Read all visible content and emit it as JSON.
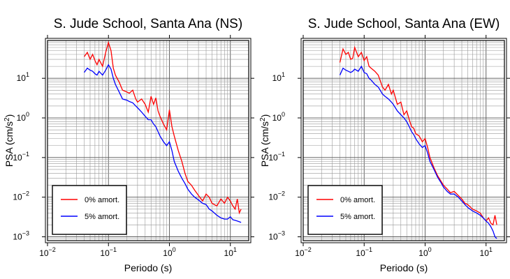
{
  "chart_data": [
    {
      "type": "line",
      "title": "S. Jude School, Santa Ana (NS)",
      "xlabel": "Periodo (s)",
      "ylabel": "PSA (cm/s²)",
      "xscale": "log",
      "yscale": "log",
      "xlim": [
        0.01,
        20
      ],
      "ylim": [
        0.0008,
        90
      ],
      "x_ticks": [
        {
          "value": 0.01,
          "label_base": "10",
          "label_exp": "−2"
        },
        {
          "value": 0.1,
          "label_base": "10",
          "label_exp": "−1"
        },
        {
          "value": 1,
          "label_base": "10",
          "label_exp": "0"
        },
        {
          "value": 10,
          "label_base": "10",
          "label_exp": "1"
        }
      ],
      "y_ticks": [
        {
          "value": 0.001,
          "label_base": "10",
          "label_exp": "−3"
        },
        {
          "value": 0.01,
          "label_base": "10",
          "label_exp": "−2"
        },
        {
          "value": 0.1,
          "label_base": "10",
          "label_exp": "−1"
        },
        {
          "value": 1,
          "label_base": "10",
          "label_exp": "0"
        },
        {
          "value": 10,
          "label_base": "10",
          "label_exp": "1"
        }
      ],
      "grid": true,
      "legend_position": "bottom-left",
      "series": [
        {
          "name": "0% amort.",
          "color": "#ff0000",
          "x": [
            0.04,
            0.045,
            0.05,
            0.055,
            0.06,
            0.065,
            0.07,
            0.08,
            0.09,
            0.1,
            0.11,
            0.12,
            0.13,
            0.15,
            0.17,
            0.2,
            0.22,
            0.25,
            0.28,
            0.3,
            0.35,
            0.4,
            0.45,
            0.5,
            0.55,
            0.6,
            0.65,
            0.7,
            0.8,
            0.9,
            1.0,
            1.1,
            1.2,
            1.4,
            1.6,
            1.8,
            2.0,
            2.3,
            2.6,
            3.0,
            3.5,
            4.0,
            4.5,
            5.0,
            6.0,
            7.0,
            8.0,
            9.0,
            10.0,
            11.0,
            12.0,
            13.0,
            14.0,
            15.0
          ],
          "y": [
            35,
            45,
            30,
            40,
            28,
            22,
            30,
            20,
            45,
            80,
            50,
            18,
            12,
            8,
            5,
            4.5,
            4.2,
            5,
            3,
            2.5,
            3,
            2.2,
            1.4,
            3.5,
            2.2,
            3.2,
            1.5,
            1.1,
            0.7,
            0.5,
            1.6,
            0.6,
            0.35,
            0.15,
            0.08,
            0.04,
            0.025,
            0.02,
            0.015,
            0.011,
            0.008,
            0.012,
            0.01,
            0.007,
            0.006,
            0.009,
            0.007,
            0.01,
            0.008,
            0.006,
            0.005,
            0.009,
            0.004,
            0.005
          ]
        },
        {
          "name": "5% amort.",
          "color": "#0000ff",
          "x": [
            0.04,
            0.045,
            0.05,
            0.055,
            0.06,
            0.065,
            0.07,
            0.08,
            0.09,
            0.1,
            0.11,
            0.12,
            0.13,
            0.15,
            0.17,
            0.2,
            0.22,
            0.25,
            0.28,
            0.3,
            0.35,
            0.4,
            0.45,
            0.5,
            0.55,
            0.6,
            0.65,
            0.7,
            0.8,
            0.9,
            1.0,
            1.1,
            1.2,
            1.4,
            1.6,
            1.8,
            2.0,
            2.3,
            2.6,
            3.0,
            3.5,
            4.0,
            4.5,
            5.0,
            6.0,
            7.0,
            8.0,
            9.0,
            10.0,
            11.0,
            12.0,
            13.0,
            14.0,
            15.0
          ],
          "y": [
            14,
            18,
            16,
            15,
            13,
            12,
            15,
            12,
            16,
            22,
            17,
            10,
            7,
            4.5,
            3,
            2.8,
            2.6,
            2.4,
            2,
            1.8,
            1.4,
            1.1,
            0.9,
            0.9,
            0.7,
            0.6,
            0.45,
            0.35,
            0.25,
            0.2,
            0.25,
            0.15,
            0.08,
            0.045,
            0.03,
            0.022,
            0.016,
            0.012,
            0.01,
            0.0085,
            0.007,
            0.0065,
            0.005,
            0.0045,
            0.0035,
            0.003,
            0.0028,
            0.0028,
            0.0032,
            0.0027,
            0.0026,
            0.0025,
            0.0024,
            0.0023
          ]
        }
      ]
    },
    {
      "type": "line",
      "title": "S. Jude School, Santa Ana (EW)",
      "xlabel": "Periodo (s)",
      "ylabel": "PSA (cm/s²)",
      "xscale": "log",
      "yscale": "log",
      "xlim": [
        0.01,
        20
      ],
      "ylim": [
        0.0008,
        90
      ],
      "x_ticks": [
        {
          "value": 0.01,
          "label_base": "10",
          "label_exp": "−2"
        },
        {
          "value": 0.1,
          "label_base": "10",
          "label_exp": "−1"
        },
        {
          "value": 1,
          "label_base": "10",
          "label_exp": "0"
        },
        {
          "value": 10,
          "label_base": "10",
          "label_exp": "1"
        }
      ],
      "y_ticks": [
        {
          "value": 0.001,
          "label_base": "10",
          "label_exp": "−3"
        },
        {
          "value": 0.01,
          "label_base": "10",
          "label_exp": "−2"
        },
        {
          "value": 0.1,
          "label_base": "10",
          "label_exp": "−1"
        },
        {
          "value": 1,
          "label_base": "10",
          "label_exp": "0"
        },
        {
          "value": 10,
          "label_base": "10",
          "label_exp": "1"
        }
      ],
      "grid": true,
      "legend_position": "bottom-left",
      "series": [
        {
          "name": "0% amort.",
          "color": "#ff0000",
          "x": [
            0.04,
            0.045,
            0.05,
            0.055,
            0.06,
            0.065,
            0.07,
            0.08,
            0.09,
            0.1,
            0.11,
            0.12,
            0.13,
            0.15,
            0.17,
            0.2,
            0.22,
            0.25,
            0.28,
            0.3,
            0.35,
            0.4,
            0.45,
            0.5,
            0.55,
            0.6,
            0.65,
            0.7,
            0.8,
            0.9,
            1.0,
            1.1,
            1.2,
            1.4,
            1.6,
            1.8,
            2.0,
            2.3,
            2.6,
            3.0,
            3.5,
            4.0,
            4.5,
            5.0,
            6.0,
            7.0,
            8.0,
            9.0,
            10.0,
            11.0,
            12.0,
            13.0,
            14.0,
            15.0
          ],
          "y": [
            25,
            55,
            40,
            45,
            30,
            32,
            60,
            35,
            45,
            28,
            35,
            20,
            18,
            15,
            12,
            6,
            5,
            7,
            4,
            5,
            2.2,
            2.5,
            1.2,
            1.5,
            0.9,
            0.6,
            0.55,
            0.4,
            0.35,
            0.25,
            0.3,
            0.18,
            0.1,
            0.055,
            0.035,
            0.026,
            0.02,
            0.016,
            0.013,
            0.014,
            0.011,
            0.009,
            0.007,
            0.0065,
            0.005,
            0.0045,
            0.004,
            0.003,
            0.0025,
            0.003,
            0.0022,
            0.002,
            0.0035,
            0.002
          ]
        },
        {
          "name": "5% amort.",
          "color": "#0000ff",
          "x": [
            0.04,
            0.045,
            0.05,
            0.055,
            0.06,
            0.065,
            0.07,
            0.08,
            0.09,
            0.1,
            0.11,
            0.12,
            0.13,
            0.15,
            0.17,
            0.2,
            0.22,
            0.25,
            0.28,
            0.3,
            0.35,
            0.4,
            0.45,
            0.5,
            0.55,
            0.6,
            0.65,
            0.7,
            0.8,
            0.9,
            1.0,
            1.1,
            1.2,
            1.4,
            1.6,
            1.8,
            2.0,
            2.3,
            2.6,
            3.0,
            3.5,
            4.0,
            4.5,
            5.0,
            6.0,
            7.0,
            8.0,
            9.0,
            10.0,
            11.0,
            12.0,
            13.0,
            14.0,
            15.0
          ],
          "y": [
            12,
            18,
            16,
            15,
            14,
            15,
            17,
            15,
            20,
            14,
            13,
            10,
            9,
            7,
            6,
            4,
            3.5,
            3,
            2.5,
            2.2,
            1.5,
            1.2,
            1,
            0.8,
            0.6,
            0.45,
            0.38,
            0.3,
            0.22,
            0.18,
            0.2,
            0.13,
            0.08,
            0.05,
            0.032,
            0.024,
            0.018,
            0.014,
            0.012,
            0.012,
            0.01,
            0.008,
            0.0065,
            0.0055,
            0.0045,
            0.004,
            0.0035,
            0.003,
            0.0025,
            0.0022,
            0.0018,
            0.0014,
            0.001,
            0.0009
          ]
        }
      ]
    }
  ]
}
